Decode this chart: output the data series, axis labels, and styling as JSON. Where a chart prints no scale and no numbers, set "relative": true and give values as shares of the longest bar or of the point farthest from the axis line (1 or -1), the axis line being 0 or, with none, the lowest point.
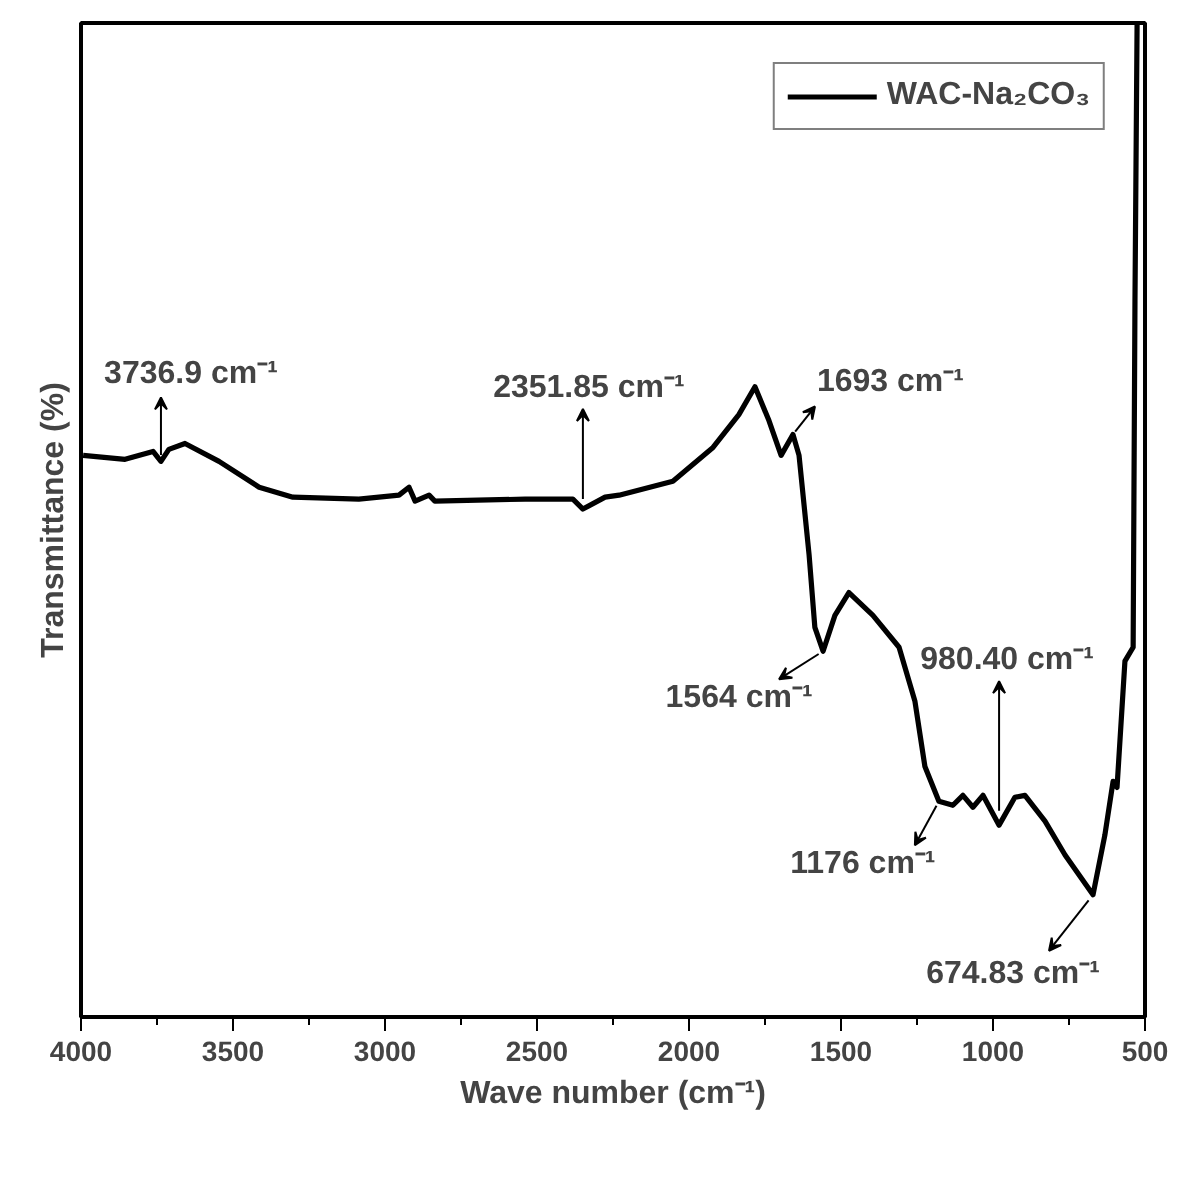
{
  "chart_data": {
    "type": "line",
    "relative": true,
    "xlabel": "Wave number (cm⁻¹)",
    "ylabel": "Transmittance (%)",
    "xlim": [
      4000,
      500
    ],
    "xticks": [
      4000,
      {
        "value": 3750,
        "label": null
      },
      3500,
      {
        "value": 3250,
        "label": null
      },
      3000,
      {
        "value": 2750,
        "label": null
      },
      2500,
      {
        "value": 2250,
        "label": null
      },
      2000,
      {
        "value": 1750,
        "label": null
      },
      1500,
      {
        "value": 1250,
        "label": null
      },
      1000,
      {
        "value": 750,
        "label": null
      },
      500
    ],
    "grid": false,
    "legend": "top right",
    "line_style": "solid",
    "marker": "none",
    "series": [
      {
        "name": "WAC-Na₂CO₃",
        "color": "#000000",
        "x": [
          3993,
          3855,
          3763,
          3737,
          3711,
          3658,
          3546,
          3414,
          3303,
          3086,
          2954,
          2921,
          2901,
          2855,
          2836,
          2539,
          2382,
          2349,
          2276,
          2230,
          2053,
          1921,
          1836,
          1783,
          1737,
          1697,
          1658,
          1638,
          1605,
          1586,
          1559,
          1520,
          1474,
          1395,
          1309,
          1257,
          1224,
          1178,
          1132,
          1099,
          1066,
          1033,
          980,
          928,
          895,
          829,
          763,
          671,
          632,
          605,
          592,
          566,
          539,
          533,
          526
        ],
        "values": [
          0.565,
          0.561,
          0.569,
          0.559,
          0.571,
          0.577,
          0.559,
          0.533,
          0.523,
          0.521,
          0.525,
          0.533,
          0.519,
          0.525,
          0.519,
          0.521,
          0.521,
          0.511,
          0.523,
          0.525,
          0.539,
          0.573,
          0.606,
          0.634,
          0.6,
          0.565,
          0.586,
          0.565,
          0.465,
          0.392,
          0.368,
          0.404,
          0.427,
          0.404,
          0.372,
          0.318,
          0.252,
          0.217,
          0.213,
          0.223,
          0.211,
          0.223,
          0.193,
          0.221,
          0.223,
          0.197,
          0.163,
          0.123,
          0.183,
          0.237,
          0.231,
          0.358,
          0.372,
          0.72,
          1.0
        ]
      }
    ],
    "annotations": [
      {
        "text": "3736.9 cm⁻¹",
        "x": 3737,
        "y": 0.559
      },
      {
        "text": "2351.85 cm⁻¹",
        "x": 2349,
        "y": 0.511
      },
      {
        "text": "1693 cm⁻¹",
        "x": 1658,
        "y": 0.586
      },
      {
        "text": "1564 cm⁻¹",
        "x": 1559,
        "y": 0.368
      },
      {
        "text": "980.40 cm⁻¹",
        "x": 980,
        "y": 0.193
      },
      {
        "text": "1176 cm⁻¹",
        "x": 1178,
        "y": 0.217
      },
      {
        "text": "674.83 cm⁻¹",
        "x": 671,
        "y": 0.123
      }
    ]
  }
}
